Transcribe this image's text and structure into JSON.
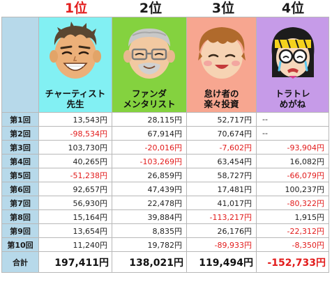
{
  "ranks": [
    "1位",
    "2位",
    "3位",
    "4位"
  ],
  "players": [
    {
      "name_line1": "チャーティスト",
      "name_line2": "先生",
      "bg_color": "#82f0f3"
    },
    {
      "name_line1": "ファンダ",
      "name_line2": "メンタリスト",
      "bg_color": "#84d23f"
    },
    {
      "name_line1": "怠け者の",
      "name_line2": "楽々投資",
      "bg_color": "#f7a690"
    },
    {
      "name_line1": "トラトレ",
      "name_line2": "めがね",
      "bg_color": "#c69be8"
    }
  ],
  "rows": [
    {
      "label": "第1回",
      "cells": [
        "13,543円",
        "28,115円",
        "52,717円",
        "--"
      ]
    },
    {
      "label": "第2回",
      "cells": [
        "-98,534円",
        "67,914円",
        "70,674円",
        "--"
      ]
    },
    {
      "label": "第3回",
      "cells": [
        "103,730円",
        "-20,016円",
        "-7,602円",
        "-93,904円"
      ]
    },
    {
      "label": "第4回",
      "cells": [
        "40,265円",
        "-103,269円",
        "63,454円",
        "16,082円"
      ]
    },
    {
      "label": "第5回",
      "cells": [
        "-51,238円",
        "26,859円",
        "58,727円",
        "-66,079円"
      ]
    },
    {
      "label": "第6回",
      "cells": [
        "92,657円",
        "47,439円",
        "17,481円",
        "100,237円"
      ]
    },
    {
      "label": "第7回",
      "cells": [
        "56,930円",
        "22,478円",
        "41,017円",
        "-80,322円"
      ]
    },
    {
      "label": "第8回",
      "cells": [
        "15,164円",
        "39,884円",
        "-113,217円",
        "1,915円"
      ]
    },
    {
      "label": "第9回",
      "cells": [
        "13,654円",
        "8,835円",
        "26,176円",
        "-22,312円"
      ]
    },
    {
      "label": "第10回",
      "cells": [
        "11,240円",
        "19,782円",
        "-89,933円",
        "-8,350円"
      ]
    }
  ],
  "total": {
    "label": "合計",
    "cells": [
      "197,411円",
      "138,021円",
      "119,494円",
      "-152,733円"
    ]
  },
  "colors": {
    "negative": "#e21b1b",
    "first_rank": "#e31e1e",
    "row_header_bg": "#b7d9ea"
  }
}
